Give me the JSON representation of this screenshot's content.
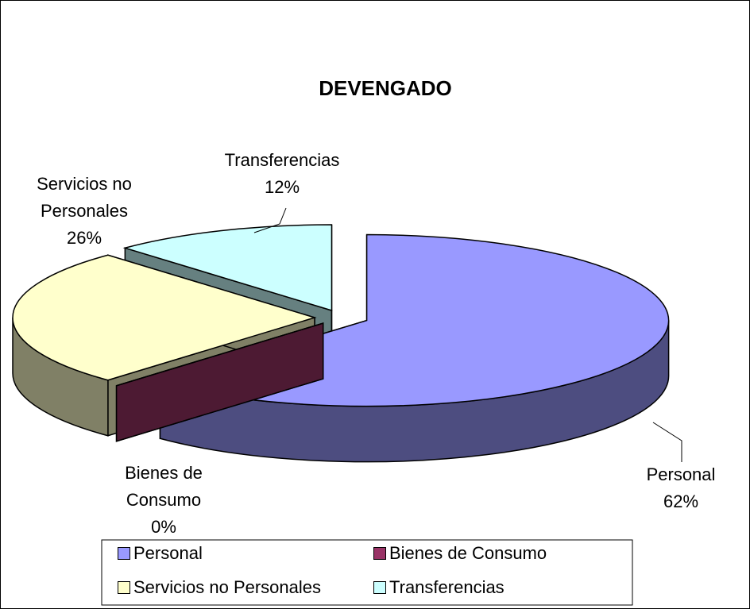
{
  "chart_data": {
    "type": "pie3d",
    "title": "DEVENGADO",
    "categories": [
      "Personal",
      "Bienes de Consumo",
      "Servicios no Personales",
      "Transferencias"
    ],
    "values": [
      62,
      0,
      26,
      12
    ],
    "value_labels": [
      "62%",
      "0%",
      "26%",
      "12%"
    ],
    "colors": [
      "#9999ff",
      "#993366",
      "#ffffcc",
      "#ccffff"
    ],
    "legend": "bottom"
  }
}
